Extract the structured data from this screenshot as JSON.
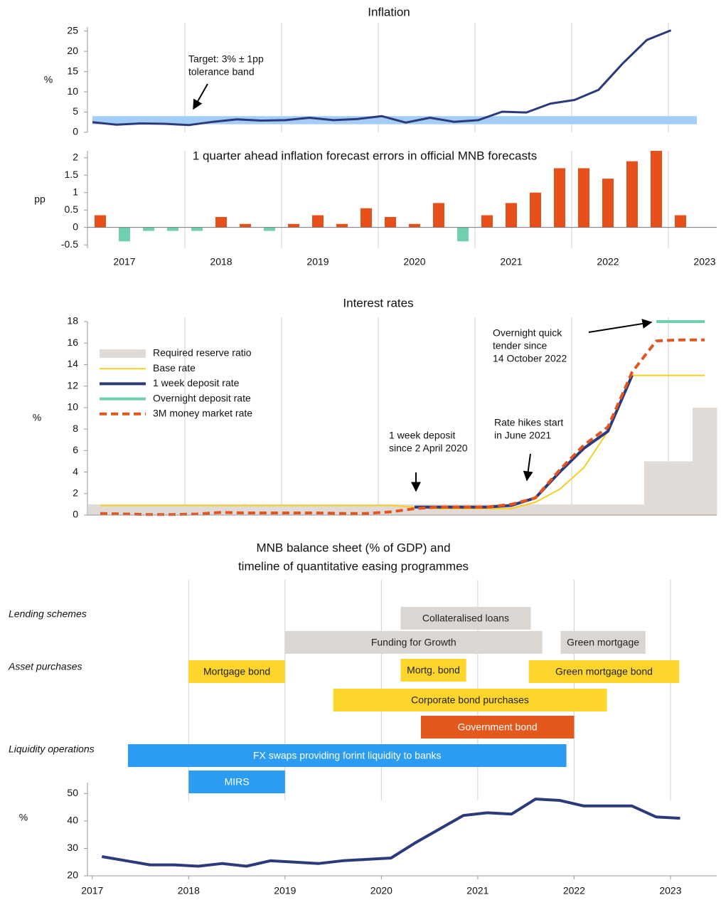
{
  "chart_data": [
    {
      "type": "line",
      "title": "Inflation",
      "y_label": "%",
      "ylim": [
        0,
        26
      ],
      "yticks": [
        0,
        5,
        10,
        15,
        20,
        25
      ],
      "values": [
        2.5,
        1.9,
        2.2,
        2.1,
        1.8,
        2.6,
        3.2,
        2.9,
        3.0,
        3.6,
        3.0,
        3.3,
        4.0,
        2.4,
        3.6,
        2.6,
        3.0,
        5.1,
        4.9,
        7.1,
        8.0,
        10.5,
        17.0,
        22.8,
        25.2
      ],
      "color": "#2b3a7a",
      "band": {
        "low": 2,
        "high": 4,
        "color": "#a3cdf6"
      },
      "annotation": [
        "Target: 3% ± 1pp",
        "tolerance band"
      ]
    },
    {
      "type": "bar",
      "title": "1 quarter ahead inflation forecast errors in official MNB forecasts",
      "y_label": "pp",
      "ylim": [
        -0.6,
        2.2
      ],
      "yticks": [
        -0.5,
        0,
        0.5,
        1,
        1.5,
        2
      ],
      "categories": [
        null,
        "2017",
        null,
        null,
        null,
        "2018",
        null,
        null,
        null,
        "2019",
        null,
        null,
        null,
        "2020",
        null,
        null,
        null,
        "2021",
        null,
        null,
        null,
        "2022",
        null,
        null,
        null,
        "2023"
      ],
      "values": [
        0.35,
        -0.4,
        -0.1,
        -0.1,
        -0.1,
        0.3,
        0.1,
        -0.1,
        0.1,
        0.35,
        0.1,
        0.55,
        0.3,
        0.1,
        0.7,
        -0.4,
        0.35,
        0.7,
        1.0,
        1.7,
        1.7,
        1.4,
        1.9,
        2.2,
        0.35,
        null
      ],
      "color": "#e8501b",
      "negative_color": "#6fcfaf"
    },
    {
      "type": "line",
      "title": "Interest rates",
      "y_label": "%",
      "ylim": [
        0,
        18
      ],
      "yticks": [
        0,
        2,
        4,
        6,
        8,
        10,
        12,
        14,
        16,
        18
      ],
      "series": [
        {
          "name": "Required reserve ratio",
          "type": "bar",
          "color": "#e0dbd7",
          "values": [
            1,
            1,
            1,
            1,
            1,
            1,
            1,
            1,
            1,
            1,
            1,
            1,
            1,
            1,
            1,
            1,
            1,
            1,
            1,
            1,
            1,
            1,
            1,
            5,
            5,
            10
          ]
        },
        {
          "name": "Base rate",
          "color": "#f6cf21",
          "values": [
            0.9,
            0.9,
            0.9,
            0.9,
            0.9,
            0.9,
            0.9,
            0.9,
            0.9,
            0.9,
            0.9,
            0.9,
            0.9,
            0.75,
            0.6,
            0.6,
            0.6,
            0.6,
            1.2,
            2.4,
            4.4,
            7.8,
            13,
            13,
            13,
            13
          ]
        },
        {
          "name": "1 week deposit rate",
          "color": "#2b3a7a",
          "values": [
            null,
            null,
            null,
            null,
            null,
            null,
            null,
            null,
            null,
            null,
            null,
            null,
            null,
            0.75,
            0.75,
            0.75,
            0.75,
            0.9,
            1.6,
            4.0,
            6.2,
            7.8,
            13,
            null,
            null,
            null
          ]
        },
        {
          "name": "Overnight deposit rate",
          "color": "#6fcfaf",
          "values": [
            null,
            null,
            null,
            null,
            null,
            null,
            null,
            null,
            null,
            null,
            null,
            null,
            null,
            null,
            null,
            null,
            null,
            null,
            null,
            null,
            null,
            null,
            null,
            18,
            18,
            18
          ]
        },
        {
          "name": "3M money market rate",
          "color": "#e4541e",
          "dashed": true,
          "values": [
            0.15,
            0.1,
            0.05,
            0.05,
            0.1,
            0.25,
            0.2,
            0.2,
            0.2,
            0.2,
            0.15,
            0.15,
            0.3,
            0.6,
            0.75,
            0.75,
            0.75,
            1.0,
            1.6,
            4.2,
            6.5,
            8.2,
            13.3,
            16.2,
            16.3,
            16.3
          ]
        }
      ],
      "annotations": [
        [
          "Overnight quick",
          "tender since",
          "14 October 2022"
        ],
        [
          "1 week deposit",
          "since 2 April 2020"
        ],
        [
          "Rate hikes start",
          "in June 2021"
        ]
      ]
    },
    {
      "type": "timeline",
      "title": [
        "MNB balance sheet (% of GDP) and",
        "timeline of quantitative easing programmes"
      ],
      "groups": [
        {
          "label": "Lending schemes",
          "items": [
            {
              "label": "Collateralised loans",
              "start": 2020.2,
              "end": 2021.55,
              "color": "#dcd6d2",
              "text_color": "#222"
            },
            {
              "label": "Funding for Growth",
              "start": 2019.0,
              "end": 2021.67,
              "color": "#dcd6d2",
              "text_color": "#222"
            },
            {
              "label": "Green mortgage",
              "start": 2021.86,
              "end": 2022.74,
              "color": "#dcd6d2",
              "text_color": "#222"
            }
          ]
        },
        {
          "label": "Asset purchases",
          "items": [
            {
              "label": "Mortgage bond",
              "start": 2018.0,
              "end": 2019.0,
              "color": "#fdd52b",
              "text_color": "#222"
            },
            {
              "label": "Mortg. bond",
              "start": 2020.2,
              "end": 2020.88,
              "color": "#fdd52b",
              "text_color": "#222"
            },
            {
              "label": "Green mortgage bond",
              "start": 2021.53,
              "end": 2023.09,
              "color": "#fdd52b",
              "text_color": "#222"
            },
            {
              "label": "Corporate bond purchases",
              "start": 2019.5,
              "end": 2022.34,
              "color": "#fdd52b",
              "text_color": "#222"
            },
            {
              "label": "Government bond",
              "start": 2020.41,
              "end": 2022.0,
              "color": "#e2581d",
              "text_color": "#fff"
            }
          ]
        },
        {
          "label": "Liquidity operations",
          "items": [
            {
              "label": "FX swaps providing forint liquidity to banks",
              "start": 2017.37,
              "end": 2021.92,
              "color": "#2b9cf2",
              "text_color": "#fff"
            },
            {
              "label": "MIRS",
              "start": 2018.0,
              "end": 2019.0,
              "color": "#2b9cf2",
              "text_color": "#fff"
            }
          ]
        }
      ],
      "y_label": "%",
      "xlim": [
        2016.95,
        2023.48
      ],
      "xticks": [
        2017,
        2018,
        2019,
        2020,
        2021,
        2022,
        2023
      ],
      "ylim": [
        20,
        54
      ],
      "yticks": [
        20,
        30,
        40,
        50
      ],
      "color": "#2b3a7a",
      "x": [
        2017.1,
        2017.35,
        2017.6,
        2017.85,
        2018.1,
        2018.35,
        2018.6,
        2018.85,
        2019.1,
        2019.35,
        2019.6,
        2019.85,
        2020.1,
        2020.35,
        2020.6,
        2020.85,
        2021.1,
        2021.35,
        2021.6,
        2021.85,
        2022.1,
        2022.35,
        2022.6,
        2022.85,
        2023.1
      ],
      "values": [
        27,
        25.5,
        24,
        24,
        23.5,
        24.5,
        23.5,
        25.5,
        25,
        24.5,
        25.5,
        26,
        26.5,
        32,
        37,
        42,
        43,
        42.5,
        48,
        47.5,
        45.5,
        45.5,
        45.5,
        41.5,
        41
      ]
    }
  ]
}
